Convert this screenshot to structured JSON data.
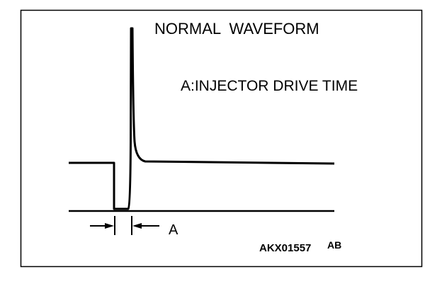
{
  "title": "NORMAL  WAVEFORM",
  "legend": "A:INJECTOR DRIVE TIME",
  "dimension_label": "A",
  "figure_code": "AKX01557",
  "figure_suffix": "AB"
}
